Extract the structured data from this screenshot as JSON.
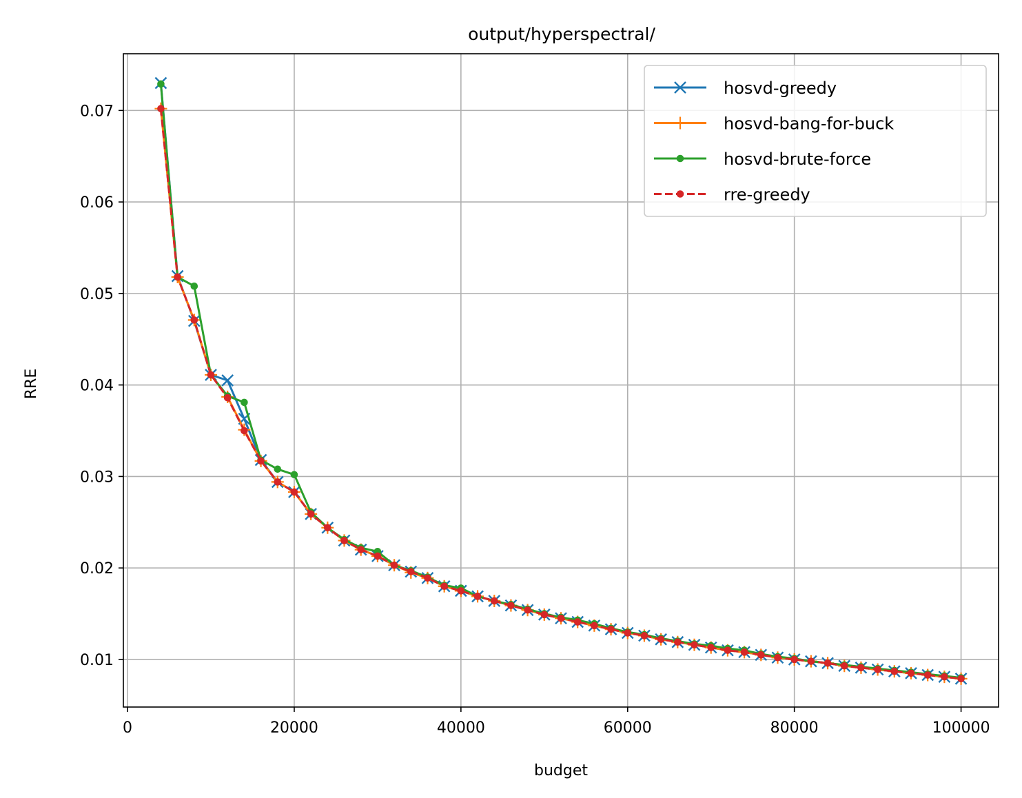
{
  "chart_data": {
    "type": "line",
    "title": "output/hyperspectral/",
    "xlabel": "budget",
    "ylabel": "RRE",
    "xlim": [
      -500,
      104500
    ],
    "ylim": [
      0.0048,
      0.0762
    ],
    "xticks": [
      0,
      20000,
      40000,
      60000,
      80000,
      100000
    ],
    "xtick_labels": [
      "0",
      "20000",
      "40000",
      "60000",
      "80000",
      "100000"
    ],
    "yticks": [
      0.01,
      0.02,
      0.03,
      0.04,
      0.05,
      0.06,
      0.07
    ],
    "ytick_labels": [
      "0.01",
      "0.02",
      "0.03",
      "0.04",
      "0.05",
      "0.06",
      "0.07"
    ],
    "grid": true,
    "legend_position": "top-right",
    "x": [
      4000,
      6000,
      8000,
      10000,
      12000,
      14000,
      16000,
      18000,
      20000,
      22000,
      24000,
      26000,
      28000,
      30000,
      32000,
      34000,
      36000,
      38000,
      40000,
      42000,
      44000,
      46000,
      48000,
      50000,
      52000,
      54000,
      56000,
      58000,
      60000,
      62000,
      64000,
      66000,
      68000,
      70000,
      72000,
      74000,
      76000,
      78000,
      80000,
      82000,
      84000,
      86000,
      88000,
      90000,
      92000,
      94000,
      96000,
      98000,
      100000
    ],
    "series": [
      {
        "name": "hosvd-greedy",
        "color": "#1f77b4",
        "marker": "x",
        "dashed": false,
        "values": [
          0.073,
          0.0519,
          0.047,
          0.0411,
          0.0405,
          0.0363,
          0.0318,
          0.0294,
          0.0283,
          0.0259,
          0.0244,
          0.023,
          0.022,
          0.0213,
          0.0203,
          0.0196,
          0.0189,
          0.018,
          0.0175,
          0.0169,
          0.0164,
          0.0159,
          0.0154,
          0.0149,
          0.0145,
          0.0141,
          0.0137,
          0.0133,
          0.0129,
          0.0126,
          0.0122,
          0.0119,
          0.0116,
          0.0113,
          0.011,
          0.0108,
          0.0105,
          0.0102,
          0.01,
          0.0098,
          0.0096,
          0.0093,
          0.0091,
          0.0089,
          0.0087,
          0.0085,
          0.0083,
          0.0081,
          0.0079
        ]
      },
      {
        "name": "hosvd-bang-for-buck",
        "color": "#ff7f0e",
        "marker": "+",
        "dashed": false,
        "values": [
          0.0702,
          0.0518,
          0.0471,
          0.0411,
          0.0387,
          0.0351,
          0.0317,
          0.0294,
          0.0283,
          0.0259,
          0.0244,
          0.023,
          0.022,
          0.0213,
          0.0203,
          0.0195,
          0.0189,
          0.018,
          0.0175,
          0.0169,
          0.0164,
          0.0159,
          0.0154,
          0.0149,
          0.0145,
          0.0141,
          0.0137,
          0.0133,
          0.0129,
          0.0126,
          0.0122,
          0.0119,
          0.0116,
          0.0113,
          0.011,
          0.0108,
          0.0105,
          0.0102,
          0.01,
          0.0098,
          0.0096,
          0.0093,
          0.0091,
          0.0089,
          0.0087,
          0.0085,
          0.0083,
          0.0081,
          0.0079
        ]
      },
      {
        "name": "hosvd-brute-force",
        "color": "#2ca02c",
        "marker": "dot",
        "dashed": false,
        "values": [
          0.0729,
          0.0518,
          0.0508,
          0.0411,
          0.0388,
          0.0381,
          0.0318,
          0.0308,
          0.0302,
          0.0261,
          0.0244,
          0.0231,
          0.0222,
          0.0218,
          0.0203,
          0.0197,
          0.019,
          0.0181,
          0.0178,
          0.0169,
          0.0164,
          0.016,
          0.0155,
          0.015,
          0.0146,
          0.0143,
          0.0139,
          0.0134,
          0.013,
          0.0127,
          0.0123,
          0.012,
          0.0117,
          0.0115,
          0.0112,
          0.011,
          0.0106,
          0.0103,
          0.0101,
          0.0098,
          0.0096,
          0.0094,
          0.0092,
          0.009,
          0.0088,
          0.0086,
          0.0084,
          0.0082,
          0.008
        ]
      },
      {
        "name": "rre-greedy",
        "color": "#d62728",
        "marker": "dot",
        "dashed": true,
        "values": [
          0.0702,
          0.0518,
          0.0471,
          0.0411,
          0.0386,
          0.035,
          0.0317,
          0.0294,
          0.0283,
          0.0259,
          0.0244,
          0.023,
          0.022,
          0.0213,
          0.0203,
          0.0196,
          0.0189,
          0.018,
          0.0175,
          0.0169,
          0.0164,
          0.0159,
          0.0154,
          0.0149,
          0.0145,
          0.0141,
          0.0137,
          0.0133,
          0.0129,
          0.0126,
          0.0122,
          0.0119,
          0.0116,
          0.0113,
          0.011,
          0.0108,
          0.0105,
          0.0102,
          0.01,
          0.0098,
          0.0096,
          0.0093,
          0.0091,
          0.0089,
          0.0087,
          0.0085,
          0.0083,
          0.0081,
          0.0079
        ]
      }
    ]
  }
}
